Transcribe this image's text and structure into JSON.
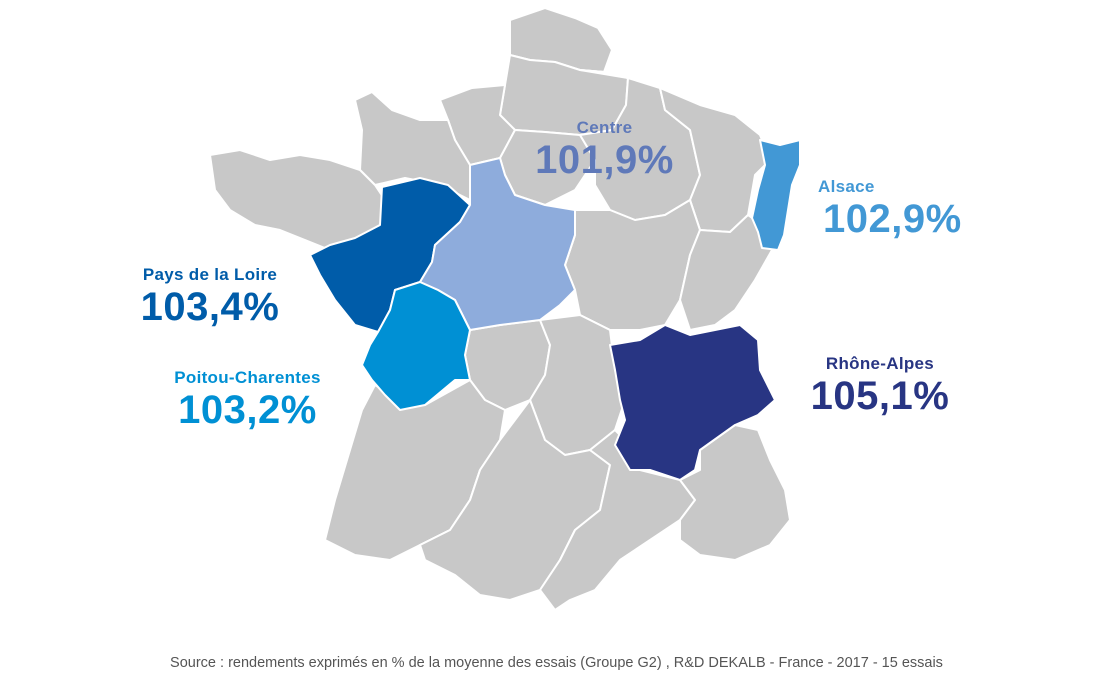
{
  "colors": {
    "base_region": "#c8c8c8",
    "border": "#ffffff",
    "source_text": "#555555"
  },
  "regions": {
    "pays_de_la_loire": {
      "name": "Pays de la Loire",
      "value": "103,4%",
      "color": "#005ca9"
    },
    "centre": {
      "name": "Centre",
      "value": "101,9%",
      "color": "#8eacdc",
      "text_color": "#5f79b9"
    },
    "alsace": {
      "name": "Alsace",
      "value": "102,9%",
      "color": "#4298d5"
    },
    "poitou_charentes": {
      "name": "Poitou-Charentes",
      "value": "103,2%",
      "color": "#0090d4"
    },
    "rhone_alpes": {
      "name": "Rhône-Alpes",
      "value": "105,1%",
      "color": "#283583"
    }
  },
  "source": "Source : rendements exprimés en % de la moyenne des essais (Groupe G2) , R&D DEKALB - France - 2017 - 15 essais"
}
